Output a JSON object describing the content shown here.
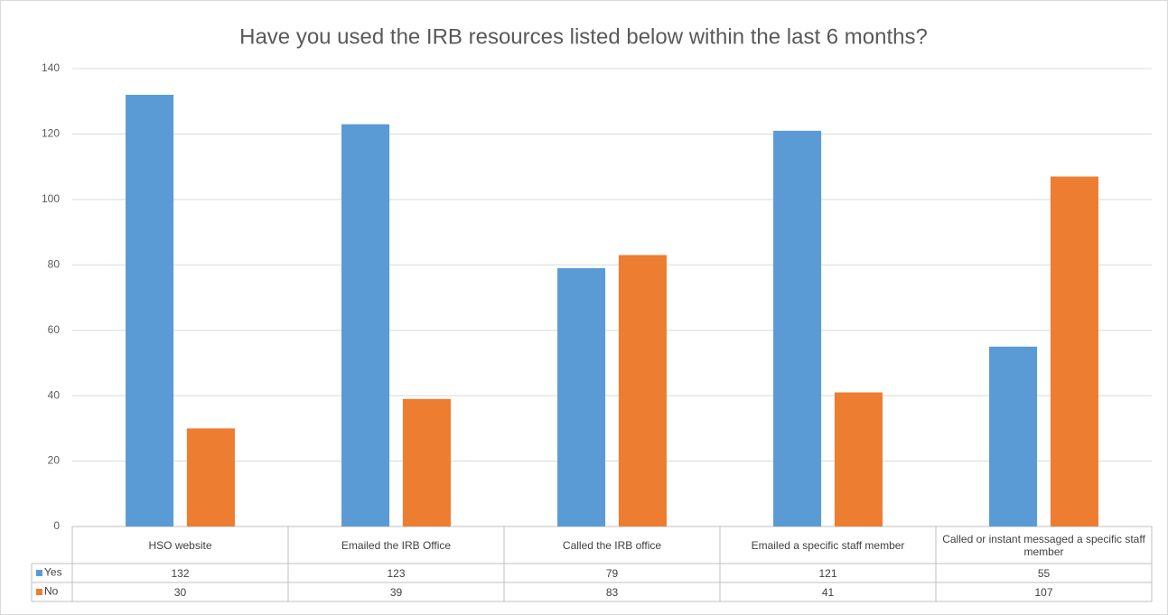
{
  "chart_data": {
    "type": "bar",
    "title": "Have you used the IRB resources listed below within the last 6 months?",
    "categories": [
      "HSO website",
      "Emailed the IRB Office",
      "Called the IRB office",
      "Emailed a specific staff member",
      "Called or instant messaged a specific staff member"
    ],
    "series": [
      {
        "name": "Yes",
        "color": "#5b9bd5",
        "values": [
          132,
          123,
          79,
          121,
          55
        ]
      },
      {
        "name": "No",
        "color": "#ed7d31",
        "values": [
          30,
          39,
          83,
          41,
          107
        ]
      }
    ],
    "ylim": [
      0,
      140
    ],
    "yticks": [
      0,
      20,
      40,
      60,
      80,
      100,
      120,
      140
    ],
    "grid": true,
    "legend": "table"
  }
}
